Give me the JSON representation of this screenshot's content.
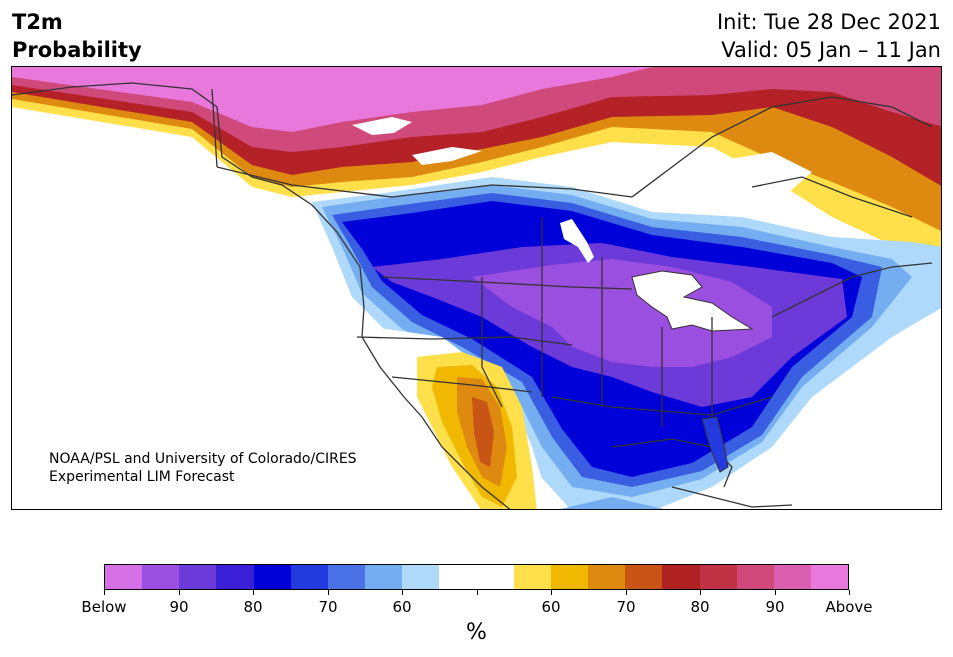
{
  "title": {
    "left_line1": "T2m",
    "left_line2": "Probability",
    "right_line1": "Init: Tue 28 Dec 2021",
    "right_line2": "Valid: 05 Jan – 11 Jan"
  },
  "credit": {
    "line1": "NOAA/PSL and University of Colorado/CIRES",
    "line2": "Experimental LIM Forecast"
  },
  "colorbar": {
    "colors": [
      "#d670e6",
      "#9b4fe0",
      "#6c3ad9",
      "#3a1fd6",
      "#0000d8",
      "#233ade",
      "#4a71e6",
      "#74aef0",
      "#aed9fa",
      "#ffffff",
      "#ffffff",
      "#ffe04a",
      "#f0b800",
      "#de8a10",
      "#c85416",
      "#b02222",
      "#c03344",
      "#cf4a7a",
      "#da5fb0",
      "#e878dc"
    ],
    "tick_labels": [
      "Below",
      "90",
      "80",
      "70",
      "60",
      "60",
      "70",
      "80",
      "90",
      "Above"
    ],
    "unit_label": "%"
  },
  "palette": {
    "above_high": "#e878dc",
    "above_magenta": "#d85eb3",
    "above_red": "#b42228",
    "above_orange": "#d97512",
    "above_yellow": "#f4c22a",
    "above_light": "#ffe04a",
    "below_pale": "#aed9fa",
    "below_light": "#74aef0",
    "below_mid": "#3a5ee2",
    "below_deep": "#0000d8",
    "below_violet": "#6c3ad9",
    "below_purple": "#9b4fe0",
    "land_outline": "#333333"
  }
}
